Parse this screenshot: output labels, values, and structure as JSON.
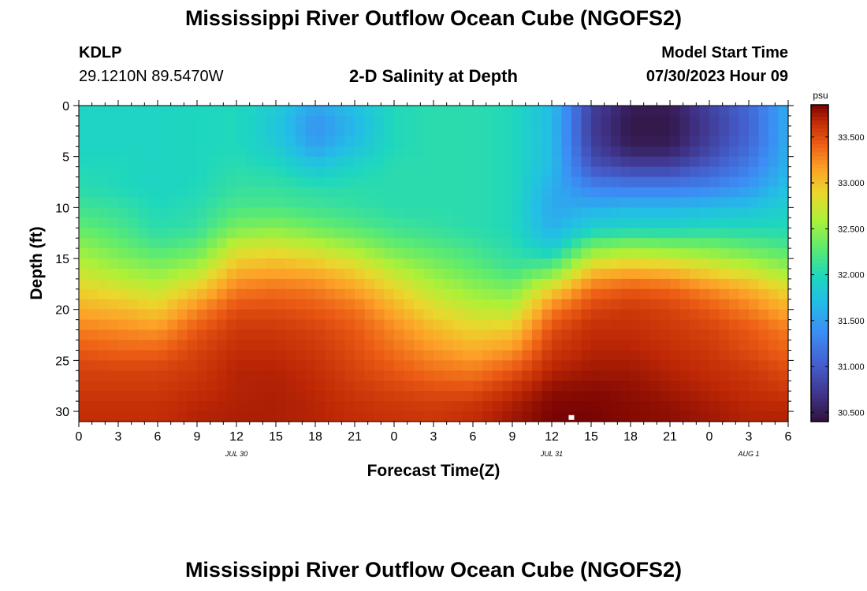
{
  "header": {
    "title": "Mississippi River Outflow Ocean Cube (NGOFS2)",
    "station_id": "KDLP",
    "station_coords": "29.1210N  89.5470W",
    "subtitle": "2-D Salinity at Depth",
    "model_start_label": "Model Start Time",
    "model_start_value": "07/30/2023 Hour 09"
  },
  "footer": {
    "repeated_title": "Mississippi River Outflow Ocean Cube (NGOFS2)"
  },
  "chart_data": {
    "type": "heatmap",
    "title": "2-D Salinity at Depth",
    "xlabel": "Forecast Time(Z)",
    "ylabel": "Depth (ft)",
    "x_unit": "forecast hour from 07/30/2023 00Z",
    "xlim": [
      0,
      54
    ],
    "ylim": [
      0,
      31
    ],
    "y_inverted": true,
    "x_ticks": [
      0,
      3,
      6,
      9,
      12,
      15,
      18,
      21,
      24,
      27,
      30,
      33,
      36,
      39,
      42,
      45,
      48,
      51,
      54
    ],
    "x_tick_labels": [
      "0",
      "3",
      "6",
      "9",
      "12",
      "15",
      "18",
      "21",
      "0",
      "3",
      "6",
      "9",
      "12",
      "15",
      "18",
      "21",
      "0",
      "3",
      "6"
    ],
    "date_labels": [
      {
        "x": 12,
        "label": "JUL 30"
      },
      {
        "x": 36,
        "label": "JUL 31"
      },
      {
        "x": 51,
        "label": "AUG 1"
      }
    ],
    "y_ticks": [
      0,
      5,
      10,
      15,
      20,
      25,
      30
    ],
    "colorbar": {
      "unit": "psu",
      "range": [
        30.4,
        33.85
      ],
      "ticks": [
        30.5,
        31.0,
        31.5,
        32.0,
        32.5,
        33.0,
        33.5
      ],
      "tick_labels": [
        "30.500",
        "31.000",
        "31.500",
        "32.000",
        "32.500",
        "33.000",
        "33.500"
      ],
      "colormap": "turbo"
    },
    "grid": false,
    "marker": {
      "x": 37.5,
      "y": 30.6
    },
    "x_hours": [
      0,
      3,
      6,
      9,
      12,
      15,
      18,
      21,
      24,
      27,
      30,
      33,
      36,
      39,
      42,
      45,
      48,
      51,
      54
    ],
    "depths_ft": [
      0,
      2,
      4,
      6,
      8,
      10,
      12,
      14,
      16,
      18,
      20,
      22,
      24,
      26,
      28,
      30,
      31
    ],
    "salinity_psu": [
      [
        31.95,
        31.95,
        31.95,
        31.98,
        32.0,
        31.85,
        31.55,
        31.75,
        32.0,
        32.05,
        32.05,
        32.0,
        31.7,
        30.8,
        30.5,
        30.5,
        30.8,
        31.1,
        31.6
      ],
      [
        31.95,
        31.95,
        31.95,
        31.98,
        32.0,
        31.8,
        31.4,
        31.65,
        32.0,
        32.05,
        32.05,
        32.0,
        31.7,
        30.75,
        30.45,
        30.45,
        30.75,
        31.05,
        31.6
      ],
      [
        31.95,
        31.95,
        31.95,
        31.98,
        32.0,
        31.85,
        31.5,
        31.75,
        32.0,
        32.05,
        32.05,
        32.0,
        31.7,
        30.8,
        30.5,
        30.5,
        30.8,
        31.1,
        31.6
      ],
      [
        32.0,
        32.0,
        31.95,
        31.98,
        32.05,
        32.0,
        31.8,
        31.95,
        32.05,
        32.05,
        32.05,
        32.0,
        31.7,
        30.95,
        30.8,
        30.8,
        31.0,
        31.25,
        31.65
      ],
      [
        32.05,
        32.0,
        31.95,
        32.0,
        32.1,
        32.1,
        32.05,
        32.05,
        32.05,
        32.05,
        32.05,
        32.0,
        31.6,
        31.3,
        31.25,
        31.25,
        31.3,
        31.45,
        31.75
      ],
      [
        32.15,
        32.1,
        32.0,
        32.05,
        32.2,
        32.2,
        32.15,
        32.1,
        32.05,
        32.05,
        32.05,
        32.0,
        31.55,
        31.6,
        31.65,
        31.65,
        31.7,
        31.75,
        31.9
      ],
      [
        32.3,
        32.2,
        32.05,
        32.1,
        32.4,
        32.45,
        32.35,
        32.25,
        32.15,
        32.1,
        32.05,
        32.0,
        31.6,
        31.9,
        31.95,
        31.95,
        32.0,
        32.0,
        32.0
      ],
      [
        32.5,
        32.35,
        32.2,
        32.3,
        32.75,
        32.8,
        32.7,
        32.55,
        32.35,
        32.25,
        32.15,
        32.05,
        31.85,
        32.4,
        32.5,
        32.45,
        32.4,
        32.3,
        32.2
      ],
      [
        32.7,
        32.55,
        32.45,
        32.6,
        33.05,
        33.1,
        33.05,
        32.9,
        32.65,
        32.45,
        32.3,
        32.15,
        32.3,
        32.95,
        33.05,
        33.0,
        32.85,
        32.7,
        32.5
      ],
      [
        32.9,
        32.8,
        32.7,
        32.95,
        33.3,
        33.35,
        33.3,
        33.15,
        32.9,
        32.65,
        32.5,
        32.4,
        32.9,
        33.35,
        33.45,
        33.4,
        33.25,
        33.1,
        32.85
      ],
      [
        33.1,
        33.05,
        32.95,
        33.25,
        33.5,
        33.5,
        33.45,
        33.35,
        33.1,
        32.85,
        32.7,
        32.65,
        33.3,
        33.55,
        33.6,
        33.55,
        33.45,
        33.3,
        33.1
      ],
      [
        33.3,
        33.25,
        33.2,
        33.45,
        33.6,
        33.6,
        33.55,
        33.45,
        33.25,
        33.05,
        32.9,
        32.95,
        33.5,
        33.65,
        33.65,
        33.6,
        33.55,
        33.45,
        33.3
      ],
      [
        33.45,
        33.4,
        33.4,
        33.55,
        33.65,
        33.65,
        33.6,
        33.5,
        33.35,
        33.2,
        33.1,
        33.2,
        33.6,
        33.7,
        33.7,
        33.65,
        33.6,
        33.5,
        33.4
      ],
      [
        33.55,
        33.55,
        33.55,
        33.6,
        33.7,
        33.7,
        33.65,
        33.55,
        33.45,
        33.35,
        33.3,
        33.45,
        33.7,
        33.75,
        33.75,
        33.7,
        33.65,
        33.6,
        33.5
      ],
      [
        33.6,
        33.6,
        33.6,
        33.65,
        33.7,
        33.72,
        33.68,
        33.6,
        33.55,
        33.5,
        33.5,
        33.65,
        33.8,
        33.82,
        33.8,
        33.75,
        33.7,
        33.65,
        33.6
      ],
      [
        33.65,
        33.65,
        33.65,
        33.7,
        33.72,
        33.72,
        33.7,
        33.65,
        33.62,
        33.6,
        33.65,
        33.75,
        33.85,
        33.85,
        33.82,
        33.8,
        33.75,
        33.7,
        33.7
      ],
      [
        33.65,
        33.65,
        33.65,
        33.7,
        33.72,
        33.72,
        33.7,
        33.65,
        33.62,
        33.6,
        33.65,
        33.75,
        33.85,
        33.85,
        33.82,
        33.8,
        33.75,
        33.7,
        33.7
      ]
    ]
  }
}
